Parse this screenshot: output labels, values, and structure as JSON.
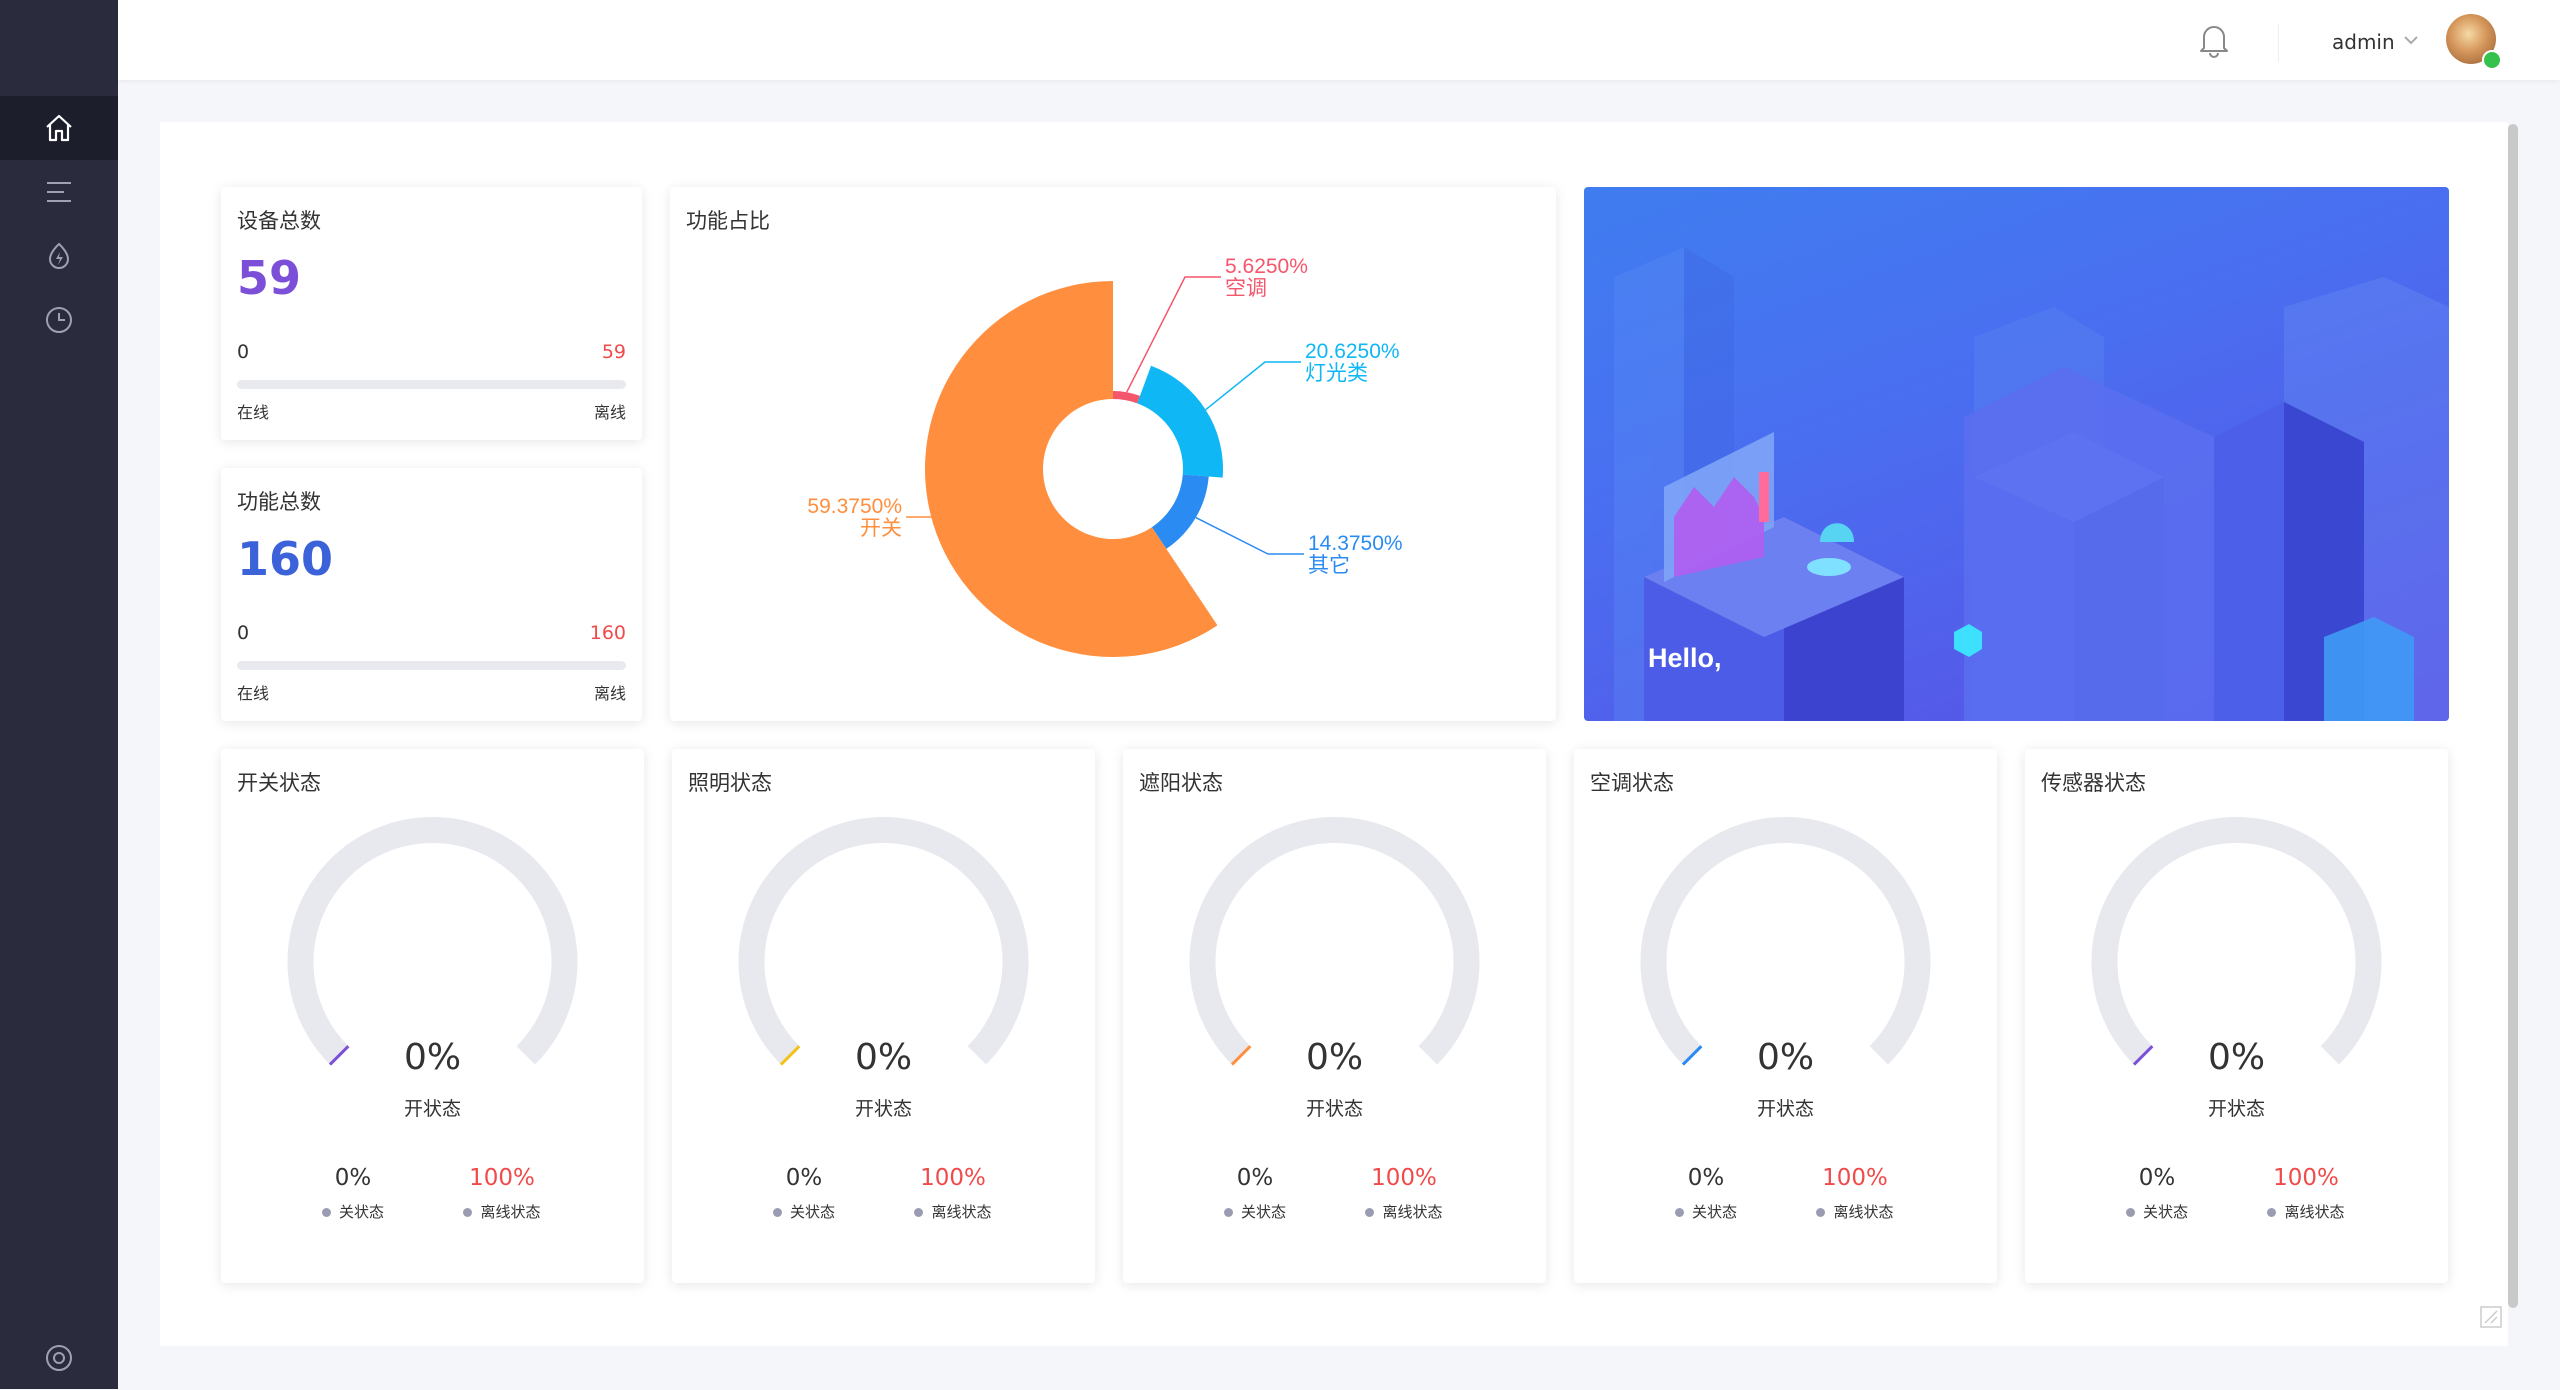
{
  "sidebar": {
    "items": [
      {
        "icon": "home-icon",
        "active": true
      },
      {
        "icon": "menu-icon",
        "active": false
      },
      {
        "icon": "flame-icon",
        "active": false
      },
      {
        "icon": "clock-icon",
        "active": false
      }
    ],
    "bottom_icon": "settings-icon"
  },
  "header": {
    "username": "admin",
    "icons": [
      "bell-icon",
      "chevron-down-icon",
      "avatar"
    ],
    "status_color": "#35c24c"
  },
  "device_total": {
    "title": "设备总数",
    "value": "59",
    "min": "0",
    "max": "59",
    "progress": 0,
    "left_label": "在线",
    "right_label": "离线",
    "value_color": "#7b4fd8"
  },
  "function_total": {
    "title": "功能总数",
    "value": "160",
    "min": "0",
    "max": "160",
    "progress": 0,
    "left_label": "在线",
    "right_label": "离线",
    "value_color": "#3b62d8"
  },
  "function_ratio": {
    "title": "功能占比"
  },
  "banner": {
    "greeting": "Hello,"
  },
  "chart_data": {
    "type": "pie",
    "title": "功能占比",
    "slices": [
      {
        "name": "空调",
        "percent": 5.625,
        "label": "5.6250%",
        "color": "#f4566b"
      },
      {
        "name": "灯光类",
        "percent": 20.625,
        "label": "20.6250%",
        "color": "#0fb7f5"
      },
      {
        "name": "其它",
        "percent": 14.375,
        "label": "14.3750%",
        "color": "#2a8cf2"
      },
      {
        "name": "开关",
        "percent": 59.375,
        "label": "59.3750%",
        "color": "#ff8f3f"
      }
    ]
  },
  "gauges": [
    {
      "title": "开关状态",
      "percent": "0%",
      "sub": "开状态",
      "off_value": "0%",
      "off_label": "关状态",
      "offline_value": "100%",
      "offline_label": "离线状态",
      "accent": "#7b4fd8"
    },
    {
      "title": "照明状态",
      "percent": "0%",
      "sub": "开状态",
      "off_value": "0%",
      "off_label": "关状态",
      "offline_value": "100%",
      "offline_label": "离线状态",
      "accent": "#f2c218"
    },
    {
      "title": "遮阳状态",
      "percent": "0%",
      "sub": "开状态",
      "off_value": "0%",
      "off_label": "关状态",
      "offline_value": "100%",
      "offline_label": "离线状态",
      "accent": "#ff8f3f"
    },
    {
      "title": "空调状态",
      "percent": "0%",
      "sub": "开状态",
      "off_value": "0%",
      "off_label": "关状态",
      "offline_value": "100%",
      "offline_label": "离线状态",
      "accent": "#2a8cf2"
    },
    {
      "title": "传感器状态",
      "percent": "0%",
      "sub": "开状态",
      "off_value": "0%",
      "off_label": "关状态",
      "offline_value": "100%",
      "offline_label": "离线状态",
      "accent": "#7b4fd8"
    }
  ]
}
